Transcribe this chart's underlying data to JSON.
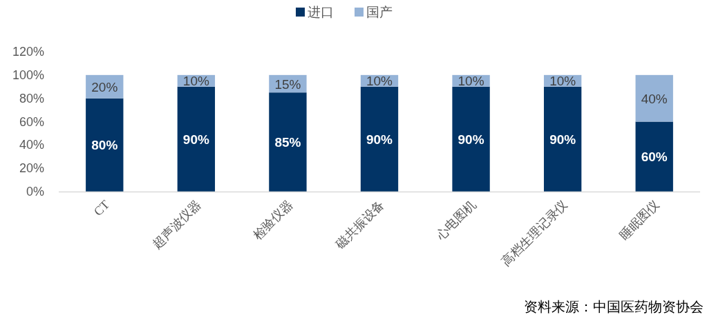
{
  "chart_data": {
    "type": "bar",
    "stacked": true,
    "categories": [
      "CT",
      "超声波仪器",
      "检验仪器",
      "磁共振设备",
      "心电图机",
      "高档生理记录仪",
      "睡眠图仪"
    ],
    "series": [
      {
        "name": "进口",
        "color": "#023466",
        "values": [
          80,
          90,
          85,
          90,
          90,
          90,
          60
        ],
        "value_labels": [
          "80%",
          "90%",
          "85%",
          "90%",
          "90%",
          "90%",
          "60%"
        ]
      },
      {
        "name": "国产",
        "color": "#95b3d7",
        "values": [
          20,
          10,
          15,
          10,
          10,
          10,
          40
        ],
        "value_labels": [
          "20%",
          "10%",
          "15%",
          "10%",
          "10%",
          "10%",
          "40%"
        ]
      }
    ],
    "ylim": [
      0,
      120
    ],
    "yticks": [
      {
        "value": 0,
        "label": "0%"
      },
      {
        "value": 20,
        "label": "20%"
      },
      {
        "value": 40,
        "label": "40%"
      },
      {
        "value": 60,
        "label": "60%"
      },
      {
        "value": 80,
        "label": "80%"
      },
      {
        "value": 100,
        "label": "100%"
      },
      {
        "value": 120,
        "label": "120%"
      }
    ],
    "grid": false,
    "legend": "top",
    "annotations": [
      "资料来源：中国医药物资协会"
    ]
  }
}
